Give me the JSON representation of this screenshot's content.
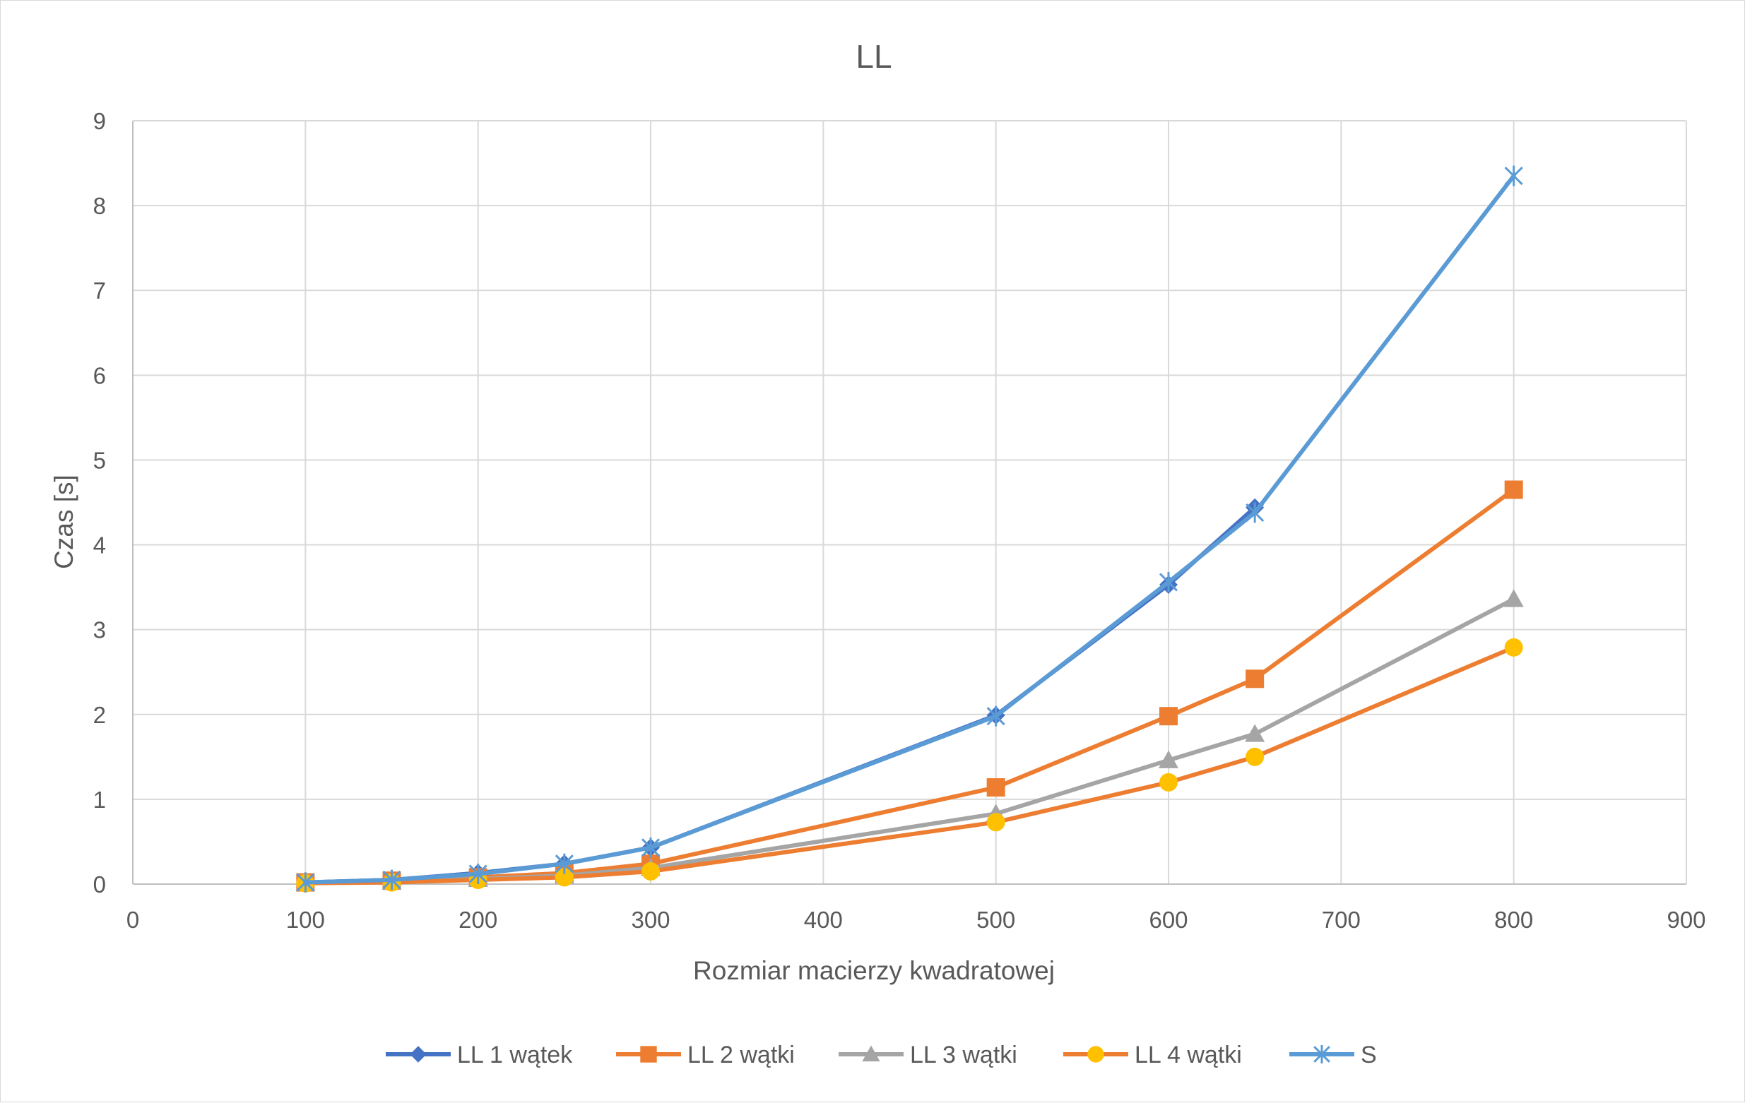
{
  "chart_data": {
    "type": "line",
    "title": "LL",
    "xlabel": "Rozmiar macierzy kwadratowej",
    "ylabel": "Czas [s]",
    "xlim": [
      0,
      900
    ],
    "ylim": [
      0,
      9
    ],
    "x_ticks": [
      0,
      100,
      200,
      300,
      400,
      500,
      600,
      700,
      800,
      900
    ],
    "y_ticks": [
      0,
      1,
      2,
      3,
      4,
      5,
      6,
      7,
      8,
      9
    ],
    "grid": true,
    "legend_position": "bottom",
    "series": [
      {
        "name": "LL 1 wątek",
        "color": "#4472c4",
        "marker": "diamond",
        "x": [
          100,
          150,
          200,
          250,
          300,
          500,
          600,
          650
        ],
        "y": [
          0.02,
          0.05,
          0.13,
          0.24,
          0.43,
          1.99,
          3.53,
          4.44
        ]
      },
      {
        "name": "LL 2 wątki",
        "color": "#ed7d31",
        "marker": "square",
        "x": [
          100,
          150,
          200,
          250,
          300,
          500,
          600,
          650,
          800
        ],
        "y": [
          0.02,
          0.04,
          0.08,
          0.13,
          0.24,
          1.14,
          1.98,
          2.42,
          4.65
        ]
      },
      {
        "name": "LL 3 wątki",
        "color": "#a5a5a5",
        "marker": "triangle",
        "x": [
          100,
          150,
          200,
          250,
          300,
          500,
          600,
          650,
          800
        ],
        "y": [
          0.01,
          0.03,
          0.06,
          0.1,
          0.19,
          0.83,
          1.46,
          1.77,
          3.36
        ]
      },
      {
        "name": "LL 4 wątki",
        "color": "#ed7d31",
        "marker": "circle",
        "marker_color": "#ffc000",
        "x": [
          100,
          150,
          200,
          250,
          300,
          500,
          600,
          650,
          800
        ],
        "y": [
          0.01,
          0.02,
          0.05,
          0.08,
          0.15,
          0.73,
          1.2,
          1.5,
          2.79
        ]
      },
      {
        "name": "S",
        "color": "#5b9bd5",
        "marker": "star",
        "x": [
          100,
          150,
          200,
          250,
          300,
          500,
          600,
          650,
          800
        ],
        "y": [
          0.02,
          0.05,
          0.12,
          0.24,
          0.43,
          1.98,
          3.56,
          4.38,
          8.35
        ]
      }
    ]
  }
}
